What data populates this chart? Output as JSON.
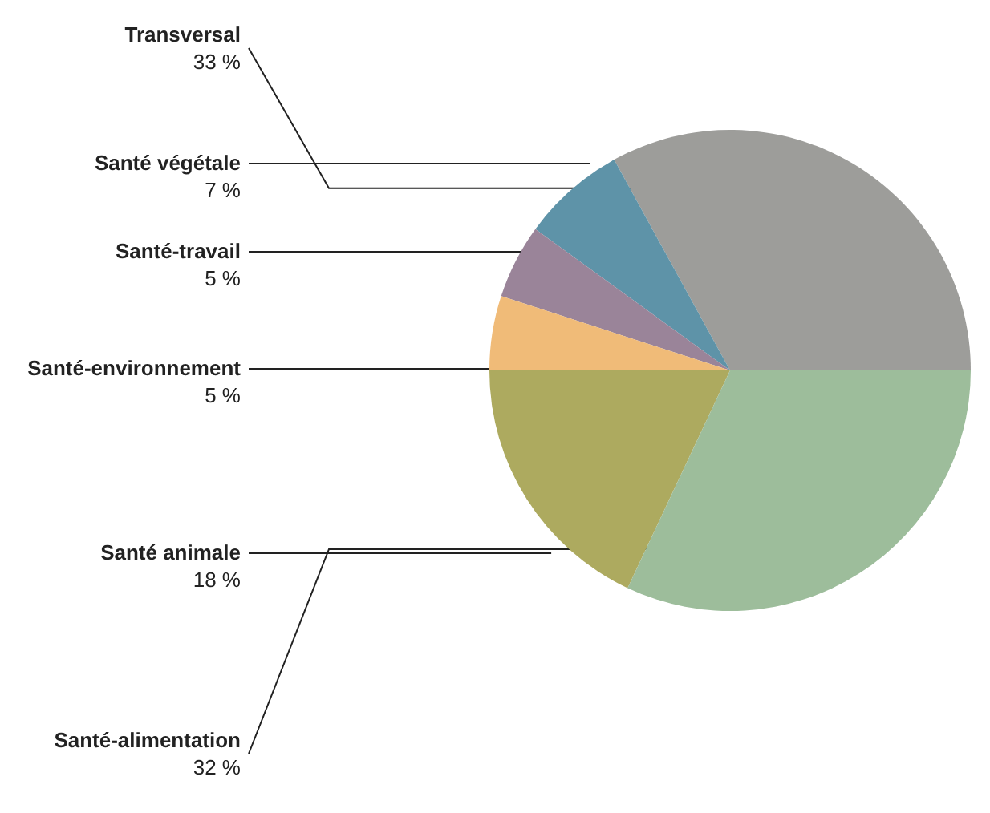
{
  "chart_data": {
    "type": "pie",
    "categories": [
      "Transversal",
      "Santé végétale",
      "Santé-travail",
      "Santé-environnement",
      "Santé animale",
      "Santé-alimentation"
    ],
    "values": [
      33,
      7,
      5,
      5,
      18,
      32
    ],
    "value_labels": [
      "33 %",
      "7 %",
      "5 %",
      "5 %",
      "18 %",
      "32 %"
    ],
    "colors": [
      "#9d9d9a",
      "#5e93a8",
      "#9a8499",
      "#f0bb78",
      "#adaa5f",
      "#9dbd9b"
    ],
    "legend": false
  }
}
